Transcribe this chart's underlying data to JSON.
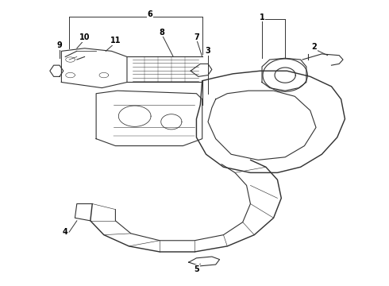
{
  "bg_color": "#ffffff",
  "line_color": "#333333",
  "label_color": "#000000",
  "figsize": [
    4.9,
    3.6
  ],
  "dpi": 100
}
